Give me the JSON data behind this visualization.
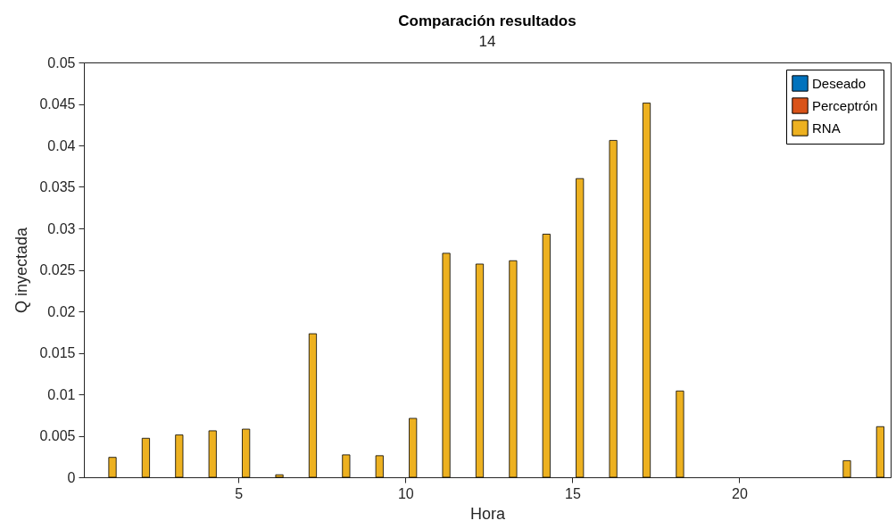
{
  "chart_data": {
    "type": "bar",
    "title": "Comparación resultados",
    "subtitle": "14",
    "xlabel": "Hora",
    "ylabel": "Q inyectada",
    "x": [
      1,
      2,
      3,
      4,
      5,
      6,
      7,
      8,
      9,
      10,
      11,
      12,
      13,
      14,
      15,
      16,
      17,
      18,
      19,
      20,
      21,
      22,
      23,
      24
    ],
    "series": [
      {
        "name": "Deseado",
        "color": "#0072bd",
        "values": [
          null,
          null,
          null,
          null,
          null,
          null,
          null,
          null,
          null,
          null,
          null,
          null,
          null,
          null,
          null,
          null,
          null,
          null,
          null,
          null,
          null,
          null,
          null,
          null
        ]
      },
      {
        "name": "Perceptrón",
        "color": "#d95319",
        "values": [
          null,
          null,
          null,
          null,
          null,
          null,
          null,
          null,
          null,
          null,
          null,
          null,
          null,
          null,
          null,
          null,
          null,
          null,
          null,
          null,
          null,
          null,
          null,
          null
        ]
      },
      {
        "name": "RNA",
        "color": "#edb120",
        "values": [
          0.0024,
          0.0047,
          0.0051,
          0.0056,
          0.0058,
          0.0003,
          0.0173,
          0.0027,
          0.0026,
          0.0071,
          0.027,
          0.0257,
          0.0261,
          0.0293,
          0.036,
          0.0406,
          0.0451,
          0.0104,
          null,
          null,
          null,
          null,
          0.002,
          0.0061
        ]
      }
    ],
    "xlim": [
      0.5,
      24.4
    ],
    "xticks": [
      5,
      10,
      15,
      20
    ],
    "ylim": [
      0,
      0.05
    ],
    "yticks": [
      0,
      0.005,
      0.01,
      0.015,
      0.02,
      0.025,
      0.03,
      0.035,
      0.04,
      0.045,
      0.05
    ],
    "legend": "top right"
  }
}
